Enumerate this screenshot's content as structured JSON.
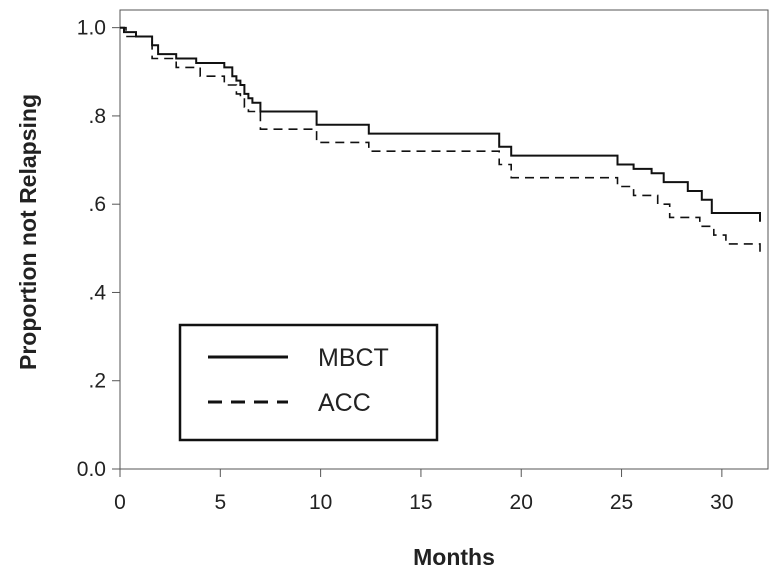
{
  "chart_data": {
    "type": "line",
    "title": "",
    "xlabel": "Months",
    "ylabel": "Proportion not Relapsing",
    "xlim": [
      0,
      32.3
    ],
    "ylim": [
      0,
      1.04
    ],
    "x_ticks": [
      {
        "value": 0,
        "label": "0"
      },
      {
        "value": 5,
        "label": "5"
      },
      {
        "value": 10,
        "label": "10"
      },
      {
        "value": 15,
        "label": "15"
      },
      {
        "value": 20,
        "label": "20"
      },
      {
        "value": 25,
        "label": "25"
      },
      {
        "value": 30,
        "label": "30"
      }
    ],
    "y_ticks": [
      {
        "value": 0,
        "label": "0.0"
      },
      {
        "value": 0.2,
        "label": ".2"
      },
      {
        "value": 0.4,
        "label": ".4"
      },
      {
        "value": 0.6,
        "label": ".6"
      },
      {
        "value": 0.8,
        "label": ".8"
      },
      {
        "value": 1.0,
        "label": "1.0"
      }
    ],
    "grid": false,
    "legend_position": "bottom-left",
    "series": [
      {
        "name": "MBCT",
        "style": "solid",
        "color": "#111111",
        "x": [
          0,
          0.2,
          0.8,
          1.6,
          1.9,
          2.8,
          3.8,
          5.2,
          5.6,
          5.8,
          6.0,
          6.2,
          6.4,
          6.6,
          7.0,
          9.8,
          12.4,
          18.9,
          19.5,
          24.8,
          25.6,
          26.5,
          27.1,
          28.3,
          29.0,
          29.5,
          31.8,
          31.9
        ],
        "y": [
          1.0,
          0.99,
          0.98,
          0.96,
          0.94,
          0.93,
          0.92,
          0.91,
          0.89,
          0.88,
          0.87,
          0.85,
          0.84,
          0.83,
          0.81,
          0.78,
          0.76,
          0.73,
          0.71,
          0.69,
          0.68,
          0.67,
          0.65,
          0.63,
          0.61,
          0.58,
          0.58,
          0.56
        ]
      },
      {
        "name": "ACC",
        "style": "dashed",
        "color": "#111111",
        "x": [
          0,
          0.3,
          1.6,
          2.8,
          4.0,
          5.2,
          5.8,
          6.0,
          6.2,
          6.4,
          7.0,
          9.8,
          12.4,
          18.9,
          19.5,
          24.8,
          25.6,
          26.8,
          27.4,
          28.9,
          29.6,
          30.2,
          31.8,
          31.9
        ],
        "y": [
          1.0,
          0.98,
          0.93,
          0.91,
          0.89,
          0.87,
          0.85,
          0.84,
          0.82,
          0.81,
          0.77,
          0.74,
          0.72,
          0.69,
          0.66,
          0.64,
          0.62,
          0.6,
          0.57,
          0.55,
          0.53,
          0.51,
          0.51,
          0.49
        ]
      }
    ]
  }
}
